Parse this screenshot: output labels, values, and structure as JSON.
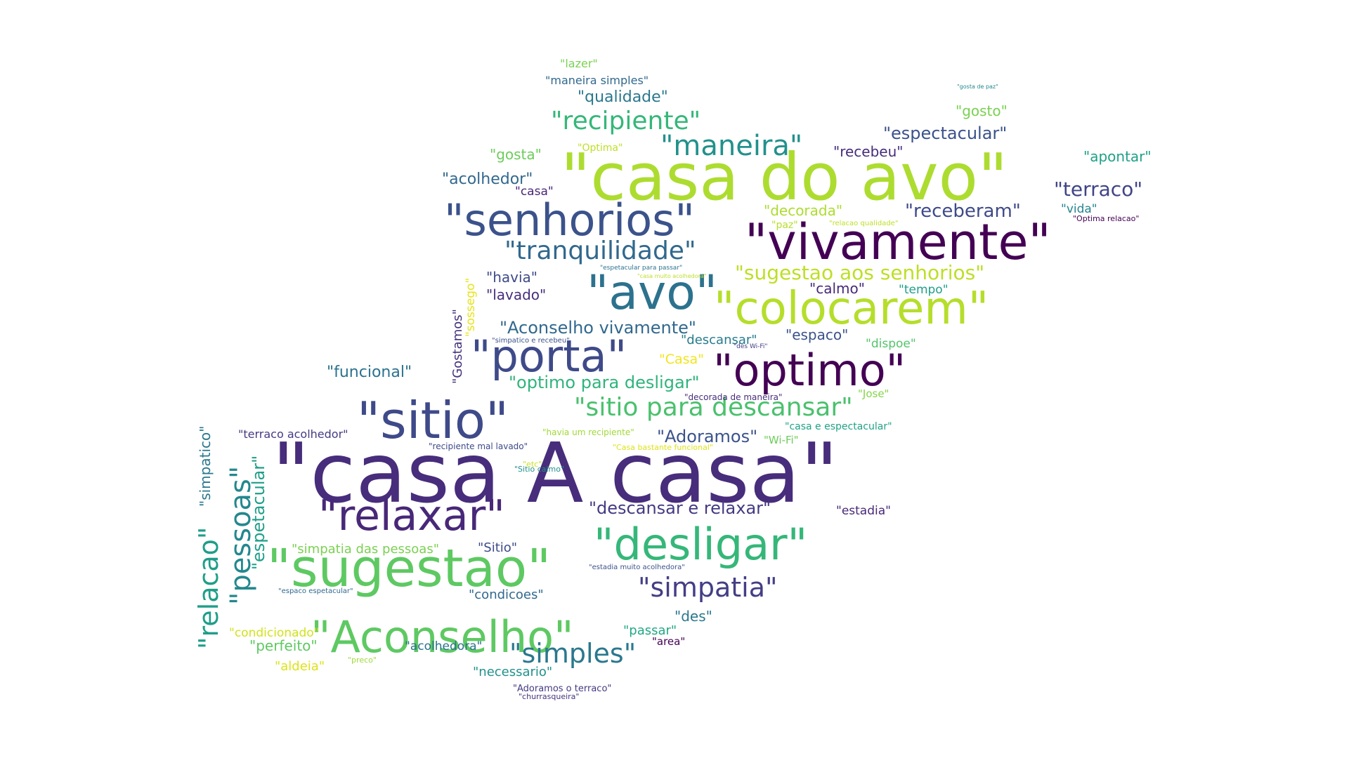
{
  "words": [
    {
      "text": "\"casa A casa\"",
      "color": "#472d7b"
    },
    {
      "text": "\"casa do avo\"",
      "color": "#addc30"
    },
    {
      "text": "\"vivamente\"",
      "color": "#440154"
    },
    {
      "text": "\"sitio\"",
      "color": "#3e4a89"
    },
    {
      "text": "\"sugestao\"",
      "color": "#5ec962"
    },
    {
      "text": "\"senhorios\"",
      "color": "#3b528b"
    },
    {
      "text": "\"colocarem\"",
      "color": "#b5de2b"
    },
    {
      "text": "\"avo\"",
      "color": "#2c728e"
    },
    {
      "text": "\"porta\"",
      "color": "#3e4a89"
    },
    {
      "text": "\"optimo\"",
      "color": "#440154"
    },
    {
      "text": "\"relaxar\"",
      "color": "#482878"
    },
    {
      "text": "\"desligar\"",
      "color": "#35b779"
    },
    {
      "text": "\"Aconselho\"",
      "color": "#5ec962"
    },
    {
      "text": "\"maneira\"",
      "color": "#21918c"
    },
    {
      "text": "\"recipiente\"",
      "color": "#35b779"
    },
    {
      "text": "\"tranquilidade\"",
      "color": "#31688e"
    },
    {
      "text": "\"sitio para descansar\"",
      "color": "#4ac16d"
    },
    {
      "text": "\"pessoas\"",
      "color": "#23888e"
    },
    {
      "text": "\"relacao\"",
      "color": "#1f9e89"
    },
    {
      "text": "\"simpatia\"",
      "color": "#433e85"
    },
    {
      "text": "\"simples\"",
      "color": "#2a788e"
    },
    {
      "text": "\"sugestao aos senhorios\"",
      "color": "#bddf26"
    },
    {
      "text": "\"terraco\"",
      "color": "#414487"
    },
    {
      "text": "\"receberam\"",
      "color": "#3e4a89"
    },
    {
      "text": "\"espectacular\"",
      "color": "#3b528b"
    },
    {
      "text": "\"descansar e relaxar\"",
      "color": "#443a83"
    },
    {
      "text": "\"Aconselho vivamente\"",
      "color": "#31688e"
    },
    {
      "text": "\"optimo para desligar\"",
      "color": "#2fb47c"
    },
    {
      "text": "\"funcional\"",
      "color": "#2c728e"
    },
    {
      "text": "\"espetacular\"",
      "color": "#1f9e89"
    },
    {
      "text": "\"simpatico\"",
      "color": "#2a788e"
    },
    {
      "text": "\"Adoramos\"",
      "color": "#3b528b"
    },
    {
      "text": "\"acolhedor\"",
      "color": "#31688e"
    },
    {
      "text": "\"qualidade\"",
      "color": "#2a788e"
    },
    {
      "text": "\"recebeu\"",
      "color": "#472d7b"
    },
    {
      "text": "\"decorada\"",
      "color": "#addc30"
    },
    {
      "text": "\"havia\"",
      "color": "#3e4a89"
    },
    {
      "text": "\"lavado\"",
      "color": "#472d7b"
    },
    {
      "text": "\"espaco\"",
      "color": "#3b528b"
    },
    {
      "text": "\"calmo\"",
      "color": "#482878"
    },
    {
      "text": "\"apontar\"",
      "color": "#1fa188"
    },
    {
      "text": "\"gosto\"",
      "color": "#7ad151"
    },
    {
      "text": "\"gosta\"",
      "color": "#6ccd5a"
    },
    {
      "text": "\"perfeito\"",
      "color": "#5ec962"
    },
    {
      "text": "\"des\"",
      "color": "#2a788e"
    },
    {
      "text": "\"passar\"",
      "color": "#22a884"
    },
    {
      "text": "\"simpatia das pessoas\"",
      "color": "#7ad151"
    },
    {
      "text": "\"Sitio\"",
      "color": "#3e4a89"
    },
    {
      "text": "\"condicoes\"",
      "color": "#31688e"
    },
    {
      "text": "\"necessario\"",
      "color": "#21918c"
    },
    {
      "text": "\"acolhedora\"",
      "color": "#2c728e"
    },
    {
      "text": "\"aldeia\"",
      "color": "#dde318"
    },
    {
      "text": "\"condicionado\"",
      "color": "#d2e21b"
    },
    {
      "text": "\"estadia\"",
      "color": "#482878"
    },
    {
      "text": "\"terraco acolhedor\"",
      "color": "#443a83"
    },
    {
      "text": "\"Gostamos\"",
      "color": "#46327e"
    },
    {
      "text": "\"sossego\"",
      "color": "#e7e419"
    },
    {
      "text": "\"Casa\"",
      "color": "#f1e51d"
    },
    {
      "text": "\"descansar\"",
      "color": "#287c8e"
    },
    {
      "text": "\"dispoe\"",
      "color": "#52c569"
    },
    {
      "text": "\"tempo\"",
      "color": "#1f9e89"
    },
    {
      "text": "\"casa\"",
      "color": "#482878"
    },
    {
      "text": "\"vida\"",
      "color": "#25848e"
    },
    {
      "text": "\"area\"",
      "color": "#440154"
    },
    {
      "text": "\"lazer\"",
      "color": "#7ad151"
    },
    {
      "text": "\"maneira simples\"",
      "color": "#31688e"
    },
    {
      "text": "\"Optima\"",
      "color": "#bddf26"
    },
    {
      "text": "\"paz\"",
      "color": "#b5de2b"
    },
    {
      "text": "\"Jose\"",
      "color": "#86d549"
    },
    {
      "text": "\"Wi-Fi\"",
      "color": "#6ccd5a"
    },
    {
      "text": "\"casa e espectacular\"",
      "color": "#20a386"
    },
    {
      "text": "\"havia um recipiente\"",
      "color": "#a0da39"
    },
    {
      "text": "\"recipiente mal lavado\"",
      "color": "#3e4a89"
    },
    {
      "text": "\"Casa bastante funcional\"",
      "color": "#dde318"
    },
    {
      "text": "\"Sitio calmo\"",
      "color": "#21918c"
    },
    {
      "text": "\"etc\"",
      "color": "#c8e020"
    },
    {
      "text": "\"decorada de maneira\"",
      "color": "#472d7b"
    },
    {
      "text": "\"estadia muito acolhedora\"",
      "color": "#3b528b"
    },
    {
      "text": "\"espaco espetacular\"",
      "color": "#31688e"
    },
    {
      "text": "\"Adoramos o terraco\"",
      "color": "#443a83"
    },
    {
      "text": "\"churrasqueira\"",
      "color": "#46327e"
    },
    {
      "text": "\"preco\"",
      "color": "#a0da39"
    },
    {
      "text": "\"simpatico e recebeu\"",
      "color": "#3b528b"
    },
    {
      "text": "\"des Wi-Fi\"",
      "color": "#433e85"
    },
    {
      "text": "\"espetacular para passar\"",
      "color": "#2c728e"
    },
    {
      "text": "\"casa muito acolhedora\"",
      "color": "#bddf26"
    },
    {
      "text": "\"relacao qualidade\"",
      "color": "#bddf26"
    },
    {
      "text": "\"Optima relacao\"",
      "color": "#440154"
    },
    {
      "text": "\"gosta de paz\"",
      "color": "#23888e"
    }
  ]
}
